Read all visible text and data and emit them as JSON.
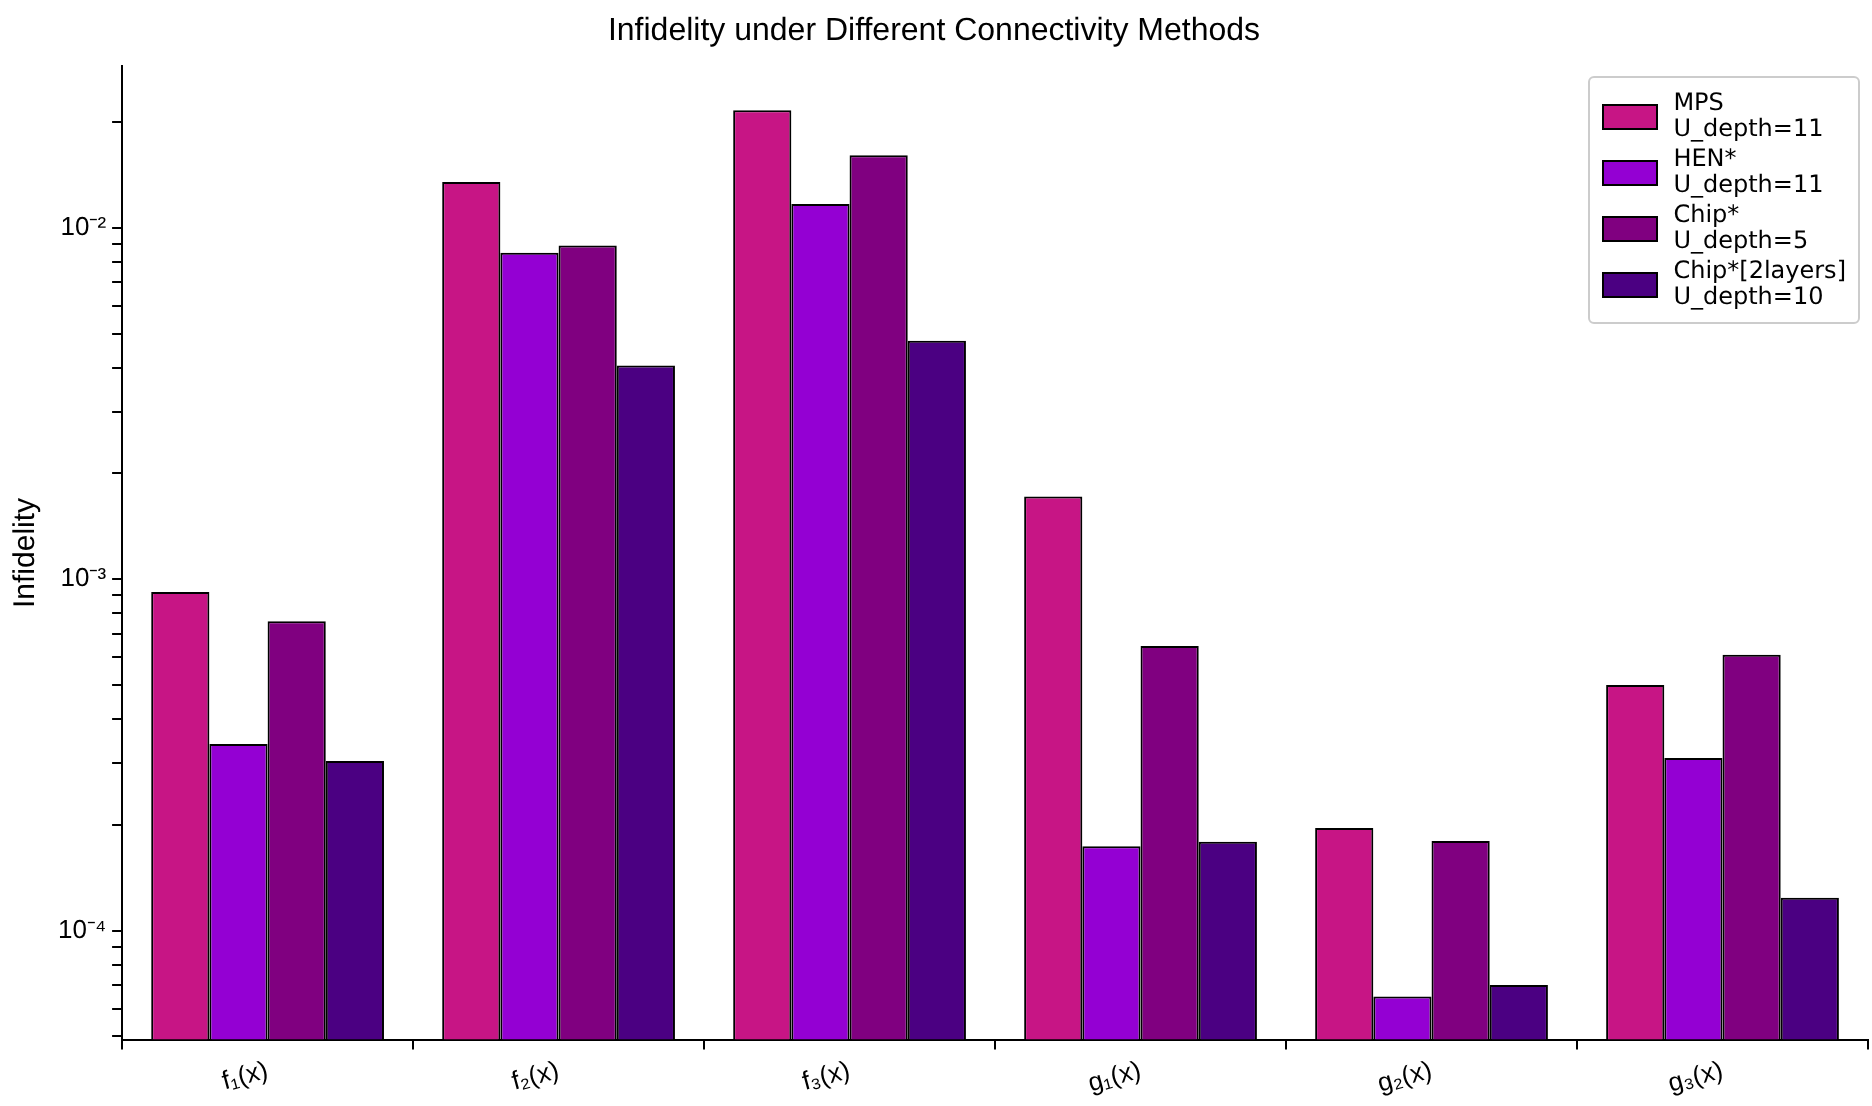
{
  "chart_data": {
    "type": "bar",
    "title": "Infidelity under Different Connectivity Methods",
    "ylabel": "Infidelity",
    "categories": [
      "f₁(x)",
      "f₂(x)",
      "f₃(x)",
      "g₁(x)",
      "g₂(x)",
      "g₃(x)"
    ],
    "series": [
      {
        "name": "MPS\nU_depth=11",
        "color": "#c71585",
        "values": [
          0.00092,
          0.0135,
          0.0216,
          0.00172,
          0.000196,
          0.0005
        ]
      },
      {
        "name": "HEN*\nU_depth=11",
        "color": "#9400d3",
        "values": [
          0.00034,
          0.0085,
          0.0117,
          0.000174,
          6.5e-05,
          0.00031
        ]
      },
      {
        "name": "Chip*\nU_depth=5",
        "color": "#800080",
        "values": [
          0.00076,
          0.0089,
          0.0161,
          0.000646,
          0.00018,
          0.00061
        ]
      },
      {
        "name": "Chip*[2layers]\nU_depth=10",
        "color": "#4b0082",
        "values": [
          0.000304,
          0.00406,
          0.00477,
          0.000179,
          7e-05,
          0.000124
        ]
      }
    ],
    "log": "y",
    "ylim": [
      4.9e-05,
      0.0288
    ],
    "yticks": [
      {
        "value": 5e-05,
        "label": null
      },
      {
        "value": 6e-05,
        "label": null
      },
      {
        "value": 7e-05,
        "label": null
      },
      {
        "value": 8e-05,
        "label": null
      },
      {
        "value": 9e-05,
        "label": null
      },
      {
        "value": 0.0001,
        "label": "10⁻⁴"
      },
      {
        "value": 0.0002,
        "label": null
      },
      {
        "value": 0.0003,
        "label": null
      },
      {
        "value": 0.0004,
        "label": null
      },
      {
        "value": 0.0005,
        "label": null
      },
      {
        "value": 0.0006,
        "label": null
      },
      {
        "value": 0.0007,
        "label": null
      },
      {
        "value": 0.0008,
        "label": null
      },
      {
        "value": 0.0009,
        "label": null
      },
      {
        "value": 0.001,
        "label": "10⁻³"
      },
      {
        "value": 0.002,
        "label": null
      },
      {
        "value": 0.003,
        "label": null
      },
      {
        "value": 0.004,
        "label": null
      },
      {
        "value": 0.005,
        "label": null
      },
      {
        "value": 0.006,
        "label": null
      },
      {
        "value": 0.007,
        "label": null
      },
      {
        "value": 0.008,
        "label": null
      },
      {
        "value": 0.009,
        "label": null
      },
      {
        "value": 0.01,
        "label": "10⁻²"
      },
      {
        "value": 0.02,
        "label": null
      }
    ],
    "grid": false,
    "legend": "top right"
  }
}
